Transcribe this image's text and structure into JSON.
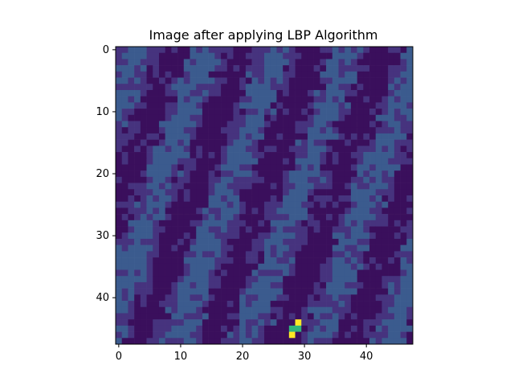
{
  "chart_data": {
    "type": "heatmap",
    "title": "Image after applying LBP Algorithm",
    "xlabel": "",
    "ylabel": "",
    "rows": 48,
    "cols": 48,
    "xlim": [
      -0.5,
      47.5
    ],
    "ylim": [
      47.5,
      -0.5
    ],
    "x_ticks": [
      0,
      10,
      20,
      30,
      40
    ],
    "y_ticks": [
      0,
      10,
      20,
      30,
      40
    ],
    "colormap": "viridis",
    "colors": {
      "low": "#3a0f5c",
      "mid_low": "#46337e",
      "mid": "#3b5b8e",
      "high": "#fde725",
      "accent": "#2fb47c"
    },
    "value_range": [
      0,
      255
    ],
    "bright_cells": [
      {
        "row": 44,
        "col": 29,
        "value": 255
      },
      {
        "row": 45,
        "col": 28,
        "value": 150
      },
      {
        "row": 45,
        "col": 29,
        "value": 150
      },
      {
        "row": 46,
        "col": 28,
        "value": 255
      }
    ],
    "seed": 7
  }
}
